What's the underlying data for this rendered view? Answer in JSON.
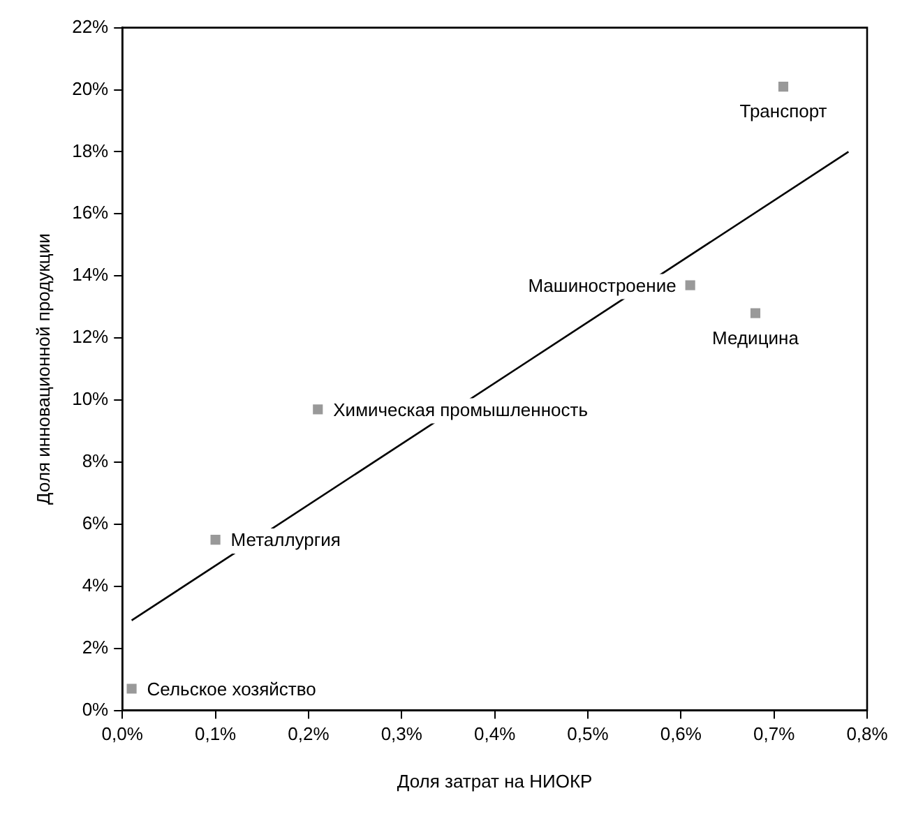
{
  "chart_data": {
    "type": "scatter",
    "xlabel": "Доля затрат на НИОКР",
    "ylabel": "Доля инновационной продукции",
    "xlim": [
      0,
      0.8
    ],
    "ylim": [
      0,
      22
    ],
    "xticks": [
      {
        "value": 0,
        "label": "0,0%"
      },
      {
        "value": 0.1,
        "label": "0,1%"
      },
      {
        "value": 0.2,
        "label": "0,2%"
      },
      {
        "value": 0.3,
        "label": "0,3%"
      },
      {
        "value": 0.4,
        "label": "0,4%"
      },
      {
        "value": 0.5,
        "label": "0,5%"
      },
      {
        "value": 0.6,
        "label": "0,6%"
      },
      {
        "value": 0.7,
        "label": "0,7%"
      },
      {
        "value": 0.8,
        "label": "0,8%"
      }
    ],
    "yticks": [
      {
        "value": 0,
        "label": "0%"
      },
      {
        "value": 2,
        "label": "2%"
      },
      {
        "value": 4,
        "label": "4%"
      },
      {
        "value": 6,
        "label": "6%"
      },
      {
        "value": 8,
        "label": "8%"
      },
      {
        "value": 10,
        "label": "10%"
      },
      {
        "value": 12,
        "label": "12%"
      },
      {
        "value": 14,
        "label": "14%"
      },
      {
        "value": 16,
        "label": "16%"
      },
      {
        "value": 18,
        "label": "18%"
      },
      {
        "value": 20,
        "label": "20%"
      },
      {
        "value": 22,
        "label": "22%"
      }
    ],
    "series": [
      {
        "type": "scatter",
        "color": "#999999",
        "marker": "square",
        "x": [
          0.01,
          0.1,
          0.21,
          0.61,
          0.68,
          0.71
        ],
        "values": [
          0.7,
          5.5,
          9.7,
          13.7,
          12.8,
          20.1
        ]
      },
      {
        "type": "line",
        "color": "#000000",
        "marker": "none",
        "line_style": "solid",
        "x": [
          0.01,
          0.78
        ],
        "values": [
          2.9,
          18.0
        ]
      }
    ],
    "annotations": [
      {
        "text": "Сельское хозяйство",
        "x": 0.01,
        "y": 0.7
      },
      {
        "text": "Металлургия",
        "x": 0.1,
        "y": 5.5
      },
      {
        "text": "Химическая промышленность",
        "x": 0.21,
        "y": 9.7
      },
      {
        "text": "Машиностроение",
        "x": 0.61,
        "y": 13.7
      },
      {
        "text": "Медицина",
        "x": 0.68,
        "y": 12.8
      },
      {
        "text": "Транспорт",
        "x": 0.71,
        "y": 20.1
      }
    ],
    "grid": false,
    "legend": false
  }
}
